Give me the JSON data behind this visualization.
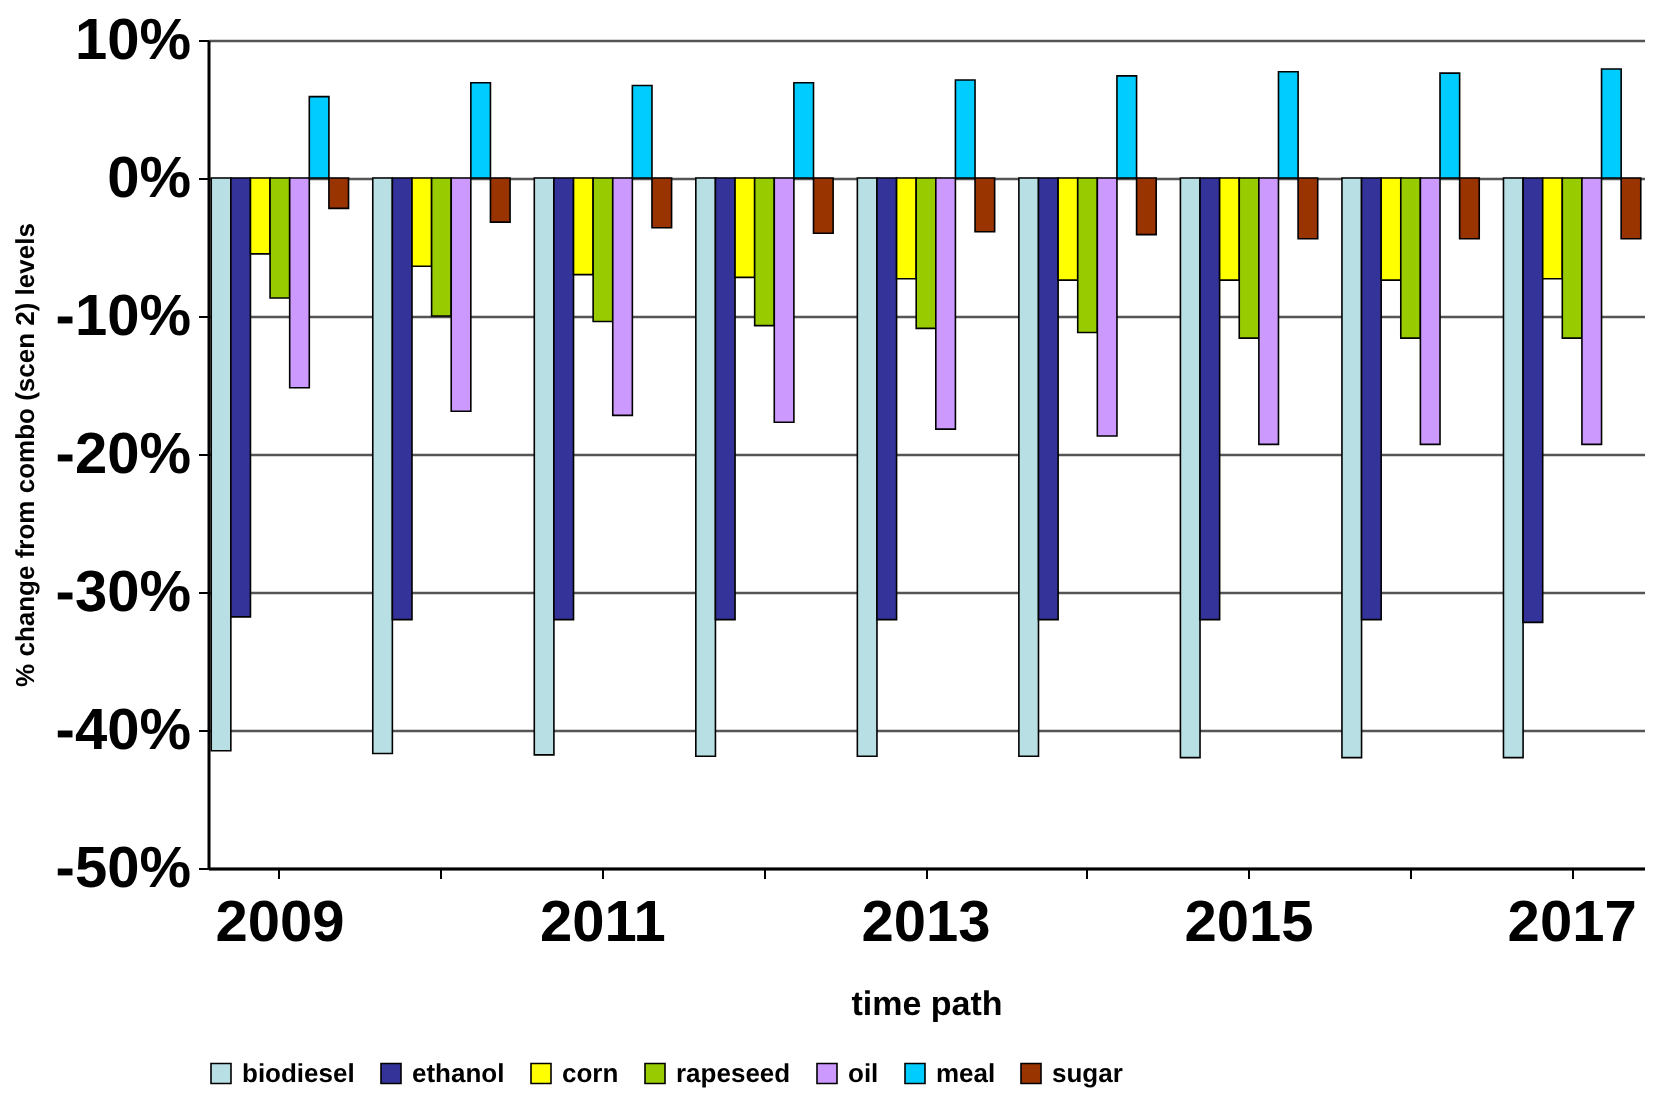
{
  "chart_data": {
    "type": "bar",
    "xlabel": "time path",
    "ylabel": "% change from combo (scen 2) levels",
    "categories": [
      "2009",
      null,
      "2011",
      null,
      "2013",
      null,
      "2015",
      null,
      "2017"
    ],
    "series": [
      {
        "name": "biodiesel",
        "color": "#b8e0e4",
        "values": [
          -41.5,
          -41.7,
          -41.8,
          -41.9,
          -41.9,
          -41.9,
          -42,
          -42,
          -42
        ]
      },
      {
        "name": "ethanol",
        "color": "#333399",
        "values": [
          -31.8,
          -32,
          -32,
          -32,
          -32,
          -32,
          -32,
          -32,
          -32.2
        ]
      },
      {
        "name": "corn",
        "color": "#ffff00",
        "values": [
          -5.5,
          -6.4,
          -7,
          -7.2,
          -7.3,
          -7.4,
          -7.4,
          -7.4,
          -7.3
        ]
      },
      {
        "name": "rapeseed",
        "color": "#99cc00",
        "values": [
          -8.7,
          -10,
          -10.4,
          -10.7,
          -10.9,
          -11.2,
          -11.6,
          -11.6,
          -11.6
        ]
      },
      {
        "name": "oil",
        "color": "#cc99ff",
        "values": [
          -15.2,
          -16.9,
          -17.2,
          -17.7,
          -18.2,
          -18.7,
          -19.3,
          -19.3,
          -19.3
        ]
      },
      {
        "name": "meal",
        "color": "#00ccff",
        "values": [
          5.9,
          6.9,
          6.7,
          6.9,
          7.1,
          7.4,
          7.7,
          7.6,
          7.9
        ]
      },
      {
        "name": "sugar",
        "color": "#993300",
        "values": [
          -2.2,
          -3.2,
          -3.6,
          -4,
          -3.9,
          -4.1,
          -4.4,
          -4.4,
          -4.4
        ]
      }
    ],
    "ylim": [
      -50,
      10
    ],
    "yticks": [
      {
        "value": -50,
        "label": "-50%"
      },
      {
        "value": -40,
        "label": "-40%"
      },
      {
        "value": -30,
        "label": "-30%"
      },
      {
        "value": -20,
        "label": "-20%"
      },
      {
        "value": -10,
        "label": "-10%"
      },
      {
        "value": 0,
        "label": "0%"
      },
      {
        "value": 10,
        "label": "10%"
      }
    ],
    "grid": "y",
    "legend": "bottom"
  }
}
